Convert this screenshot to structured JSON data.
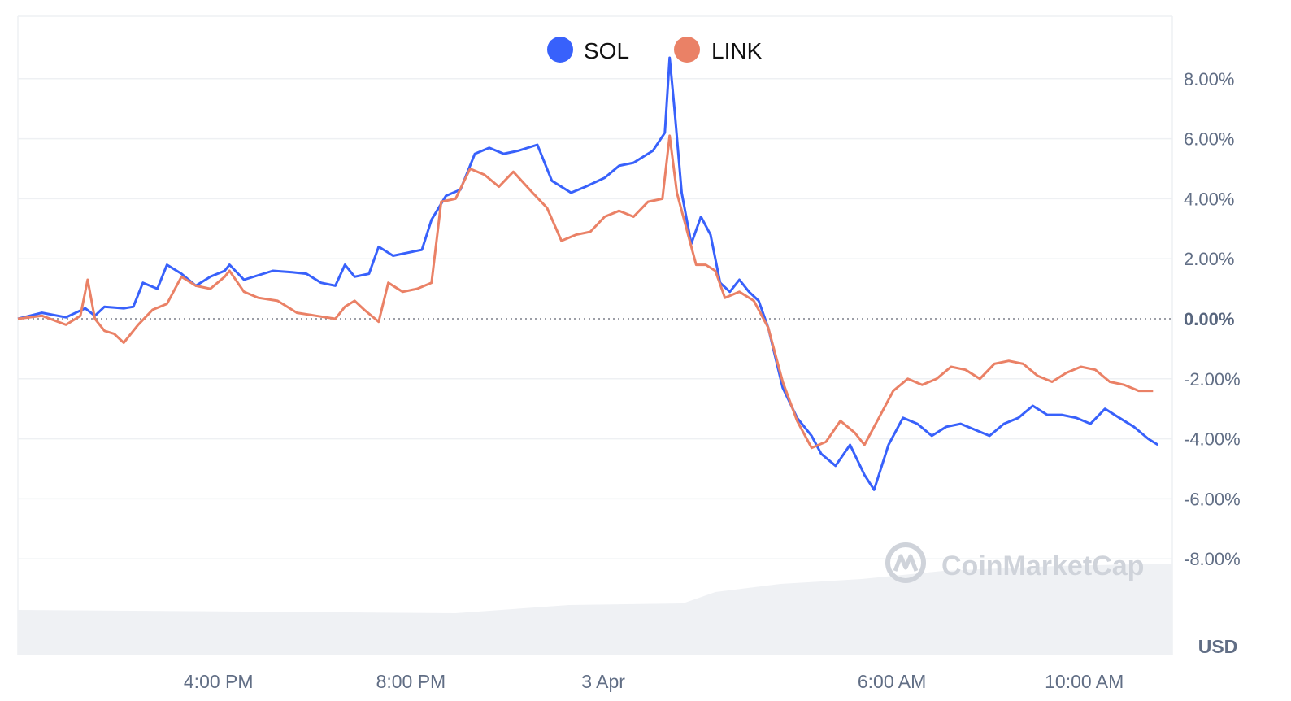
{
  "chart_data": {
    "type": "line",
    "x_ticks": [
      "4:00 PM",
      "8:00 PM",
      "3 Apr",
      "6:00 AM",
      "10:00 AM"
    ],
    "y_ticks": [
      "8.00%",
      "6.00%",
      "4.00%",
      "2.00%",
      "0.00%",
      "-2.00%",
      "-4.00%",
      "-6.00%",
      "-8.00%"
    ],
    "y_tick_values": [
      8,
      6,
      4,
      2,
      0,
      -2,
      -4,
      -6,
      -8
    ],
    "ylim": [
      -10,
      10
    ],
    "unit_label": "USD",
    "grid": true,
    "legend_position": "top-center",
    "watermark": "CoinMarketCap",
    "x_unit": "hours since chart start",
    "xlim": [
      0,
      24
    ],
    "x_tick_values": [
      4.17,
      8.17,
      12.17,
      18.17,
      22.17
    ],
    "series": [
      {
        "name": "SOL",
        "color": "#3861fb",
        "points": [
          [
            0,
            0
          ],
          [
            0.5,
            0.2
          ],
          [
            1,
            0.05
          ],
          [
            1.4,
            0.35
          ],
          [
            1.6,
            0.1
          ],
          [
            1.8,
            0.4
          ],
          [
            2.2,
            0.35
          ],
          [
            2.4,
            0.4
          ],
          [
            2.6,
            1.2
          ],
          [
            2.9,
            1.0
          ],
          [
            3.1,
            1.8
          ],
          [
            3.4,
            1.5
          ],
          [
            3.7,
            1.1
          ],
          [
            4.0,
            1.4
          ],
          [
            4.3,
            1.6
          ],
          [
            4.4,
            1.8
          ],
          [
            4.7,
            1.3
          ],
          [
            5.0,
            1.45
          ],
          [
            5.3,
            1.6
          ],
          [
            5.7,
            1.55
          ],
          [
            6.0,
            1.5
          ],
          [
            6.3,
            1.2
          ],
          [
            6.6,
            1.1
          ],
          [
            6.8,
            1.8
          ],
          [
            7.0,
            1.4
          ],
          [
            7.3,
            1.5
          ],
          [
            7.5,
            2.4
          ],
          [
            7.8,
            2.1
          ],
          [
            8.1,
            2.2
          ],
          [
            8.4,
            2.3
          ],
          [
            8.6,
            3.3
          ],
          [
            8.9,
            4.1
          ],
          [
            9.2,
            4.3
          ],
          [
            9.5,
            5.5
          ],
          [
            9.8,
            5.7
          ],
          [
            10.1,
            5.5
          ],
          [
            10.4,
            5.6
          ],
          [
            10.8,
            5.8
          ],
          [
            11.1,
            4.6
          ],
          [
            11.5,
            4.2
          ],
          [
            11.8,
            4.4
          ],
          [
            12.2,
            4.7
          ],
          [
            12.5,
            5.1
          ],
          [
            12.8,
            5.2
          ],
          [
            13.2,
            5.6
          ],
          [
            13.45,
            6.2
          ],
          [
            13.55,
            8.7
          ],
          [
            13.65,
            7.0
          ],
          [
            13.8,
            4.2
          ],
          [
            14.0,
            2.5
          ],
          [
            14.2,
            3.4
          ],
          [
            14.4,
            2.8
          ],
          [
            14.6,
            1.2
          ],
          [
            14.8,
            0.9
          ],
          [
            15.0,
            1.3
          ],
          [
            15.2,
            0.9
          ],
          [
            15.4,
            0.6
          ],
          [
            15.6,
            -0.3
          ],
          [
            15.9,
            -2.3
          ],
          [
            16.2,
            -3.3
          ],
          [
            16.5,
            -3.9
          ],
          [
            16.7,
            -4.5
          ],
          [
            17.0,
            -4.9
          ],
          [
            17.3,
            -4.2
          ],
          [
            17.6,
            -5.2
          ],
          [
            17.8,
            -5.7
          ],
          [
            18.1,
            -4.2
          ],
          [
            18.4,
            -3.3
          ],
          [
            18.7,
            -3.5
          ],
          [
            19.0,
            -3.9
          ],
          [
            19.3,
            -3.6
          ],
          [
            19.6,
            -3.5
          ],
          [
            19.9,
            -3.7
          ],
          [
            20.2,
            -3.9
          ],
          [
            20.5,
            -3.5
          ],
          [
            20.8,
            -3.3
          ],
          [
            21.1,
            -2.9
          ],
          [
            21.4,
            -3.2
          ],
          [
            21.7,
            -3.2
          ],
          [
            22.0,
            -3.3
          ],
          [
            22.3,
            -3.5
          ],
          [
            22.6,
            -3.0
          ],
          [
            22.9,
            -3.3
          ],
          [
            23.2,
            -3.6
          ],
          [
            23.5,
            -4.0
          ],
          [
            23.7,
            -4.2
          ]
        ]
      },
      {
        "name": "LINK",
        "color": "#ea8166",
        "points": [
          [
            0,
            0
          ],
          [
            0.5,
            0.1
          ],
          [
            1,
            -0.2
          ],
          [
            1.3,
            0.1
          ],
          [
            1.45,
            1.3
          ],
          [
            1.6,
            0.0
          ],
          [
            1.8,
            -0.4
          ],
          [
            2.0,
            -0.5
          ],
          [
            2.2,
            -0.8
          ],
          [
            2.5,
            -0.2
          ],
          [
            2.8,
            0.3
          ],
          [
            3.1,
            0.5
          ],
          [
            3.4,
            1.4
          ],
          [
            3.7,
            1.1
          ],
          [
            4.0,
            1.0
          ],
          [
            4.3,
            1.4
          ],
          [
            4.4,
            1.6
          ],
          [
            4.7,
            0.9
          ],
          [
            5.0,
            0.7
          ],
          [
            5.4,
            0.6
          ],
          [
            5.8,
            0.2
          ],
          [
            6.2,
            0.1
          ],
          [
            6.6,
            0.0
          ],
          [
            6.8,
            0.4
          ],
          [
            7.0,
            0.6
          ],
          [
            7.2,
            0.3
          ],
          [
            7.5,
            -0.1
          ],
          [
            7.7,
            1.2
          ],
          [
            8.0,
            0.9
          ],
          [
            8.3,
            1.0
          ],
          [
            8.6,
            1.2
          ],
          [
            8.8,
            3.9
          ],
          [
            9.1,
            4.0
          ],
          [
            9.4,
            5.0
          ],
          [
            9.7,
            4.8
          ],
          [
            10.0,
            4.4
          ],
          [
            10.3,
            4.9
          ],
          [
            10.7,
            4.2
          ],
          [
            11.0,
            3.7
          ],
          [
            11.3,
            2.6
          ],
          [
            11.6,
            2.8
          ],
          [
            11.9,
            2.9
          ],
          [
            12.2,
            3.4
          ],
          [
            12.5,
            3.6
          ],
          [
            12.8,
            3.4
          ],
          [
            13.1,
            3.9
          ],
          [
            13.4,
            4.0
          ],
          [
            13.55,
            6.1
          ],
          [
            13.7,
            4.2
          ],
          [
            13.9,
            3.0
          ],
          [
            14.1,
            1.8
          ],
          [
            14.3,
            1.8
          ],
          [
            14.5,
            1.6
          ],
          [
            14.7,
            0.7
          ],
          [
            15.0,
            0.9
          ],
          [
            15.3,
            0.6
          ],
          [
            15.6,
            -0.3
          ],
          [
            15.9,
            -2.1
          ],
          [
            16.2,
            -3.4
          ],
          [
            16.5,
            -4.3
          ],
          [
            16.8,
            -4.1
          ],
          [
            17.1,
            -3.4
          ],
          [
            17.4,
            -3.8
          ],
          [
            17.6,
            -4.2
          ],
          [
            17.9,
            -3.3
          ],
          [
            18.2,
            -2.4
          ],
          [
            18.5,
            -2.0
          ],
          [
            18.8,
            -2.2
          ],
          [
            19.1,
            -2.0
          ],
          [
            19.4,
            -1.6
          ],
          [
            19.7,
            -1.7
          ],
          [
            20.0,
            -2.0
          ],
          [
            20.3,
            -1.5
          ],
          [
            20.6,
            -1.4
          ],
          [
            20.9,
            -1.5
          ],
          [
            21.2,
            -1.9
          ],
          [
            21.5,
            -2.1
          ],
          [
            21.8,
            -1.8
          ],
          [
            22.1,
            -1.6
          ],
          [
            22.4,
            -1.7
          ],
          [
            22.7,
            -2.1
          ],
          [
            23.0,
            -2.2
          ],
          [
            23.3,
            -2.4
          ],
          [
            23.6,
            -2.4
          ]
        ]
      }
    ]
  }
}
